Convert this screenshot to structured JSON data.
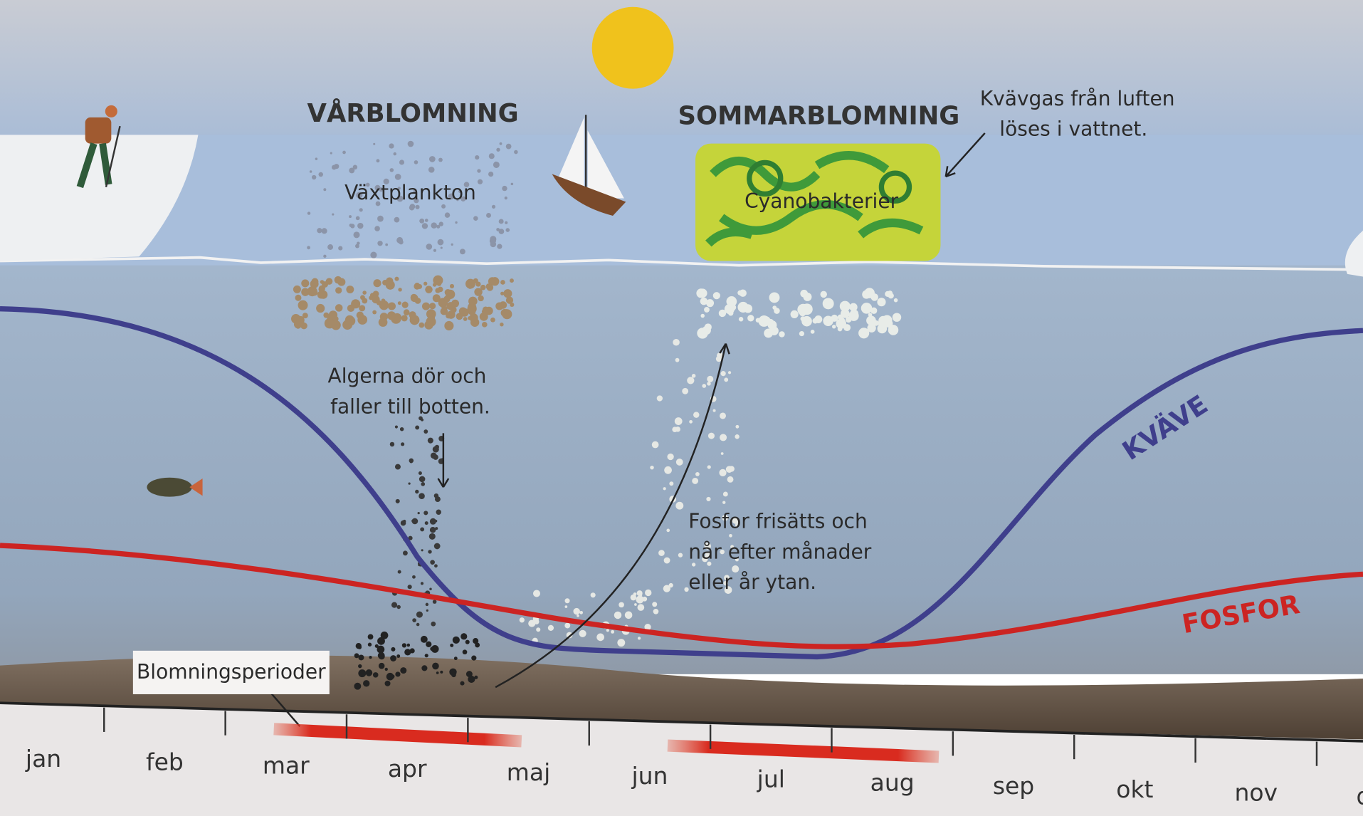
{
  "labels": {
    "spring_bloom": "VÅRBLOMNING",
    "summer_bloom": "SOMMARBLOMNING",
    "nitrogen_gas": [
      "Kvävgas från luften",
      "löses i vattnet."
    ],
    "phytoplankton": "Växtplankton",
    "cyanobacteria": "Cyanobakterier",
    "algae_die": [
      "Algerna dör och",
      "faller till botten."
    ],
    "phosphorus_release": [
      "Fosfor frisätts och",
      "når efter månader",
      "eller år ytan."
    ],
    "nitrogen_curve": "KVÄVE",
    "phosphorus_curve": "FOSFOR",
    "bloom_periods": "Blomningsperioder"
  },
  "months": [
    "jan",
    "feb",
    "mar",
    "apr",
    "maj",
    "jun",
    "jul",
    "aug",
    "sep",
    "okt",
    "nov",
    "dec"
  ]
}
